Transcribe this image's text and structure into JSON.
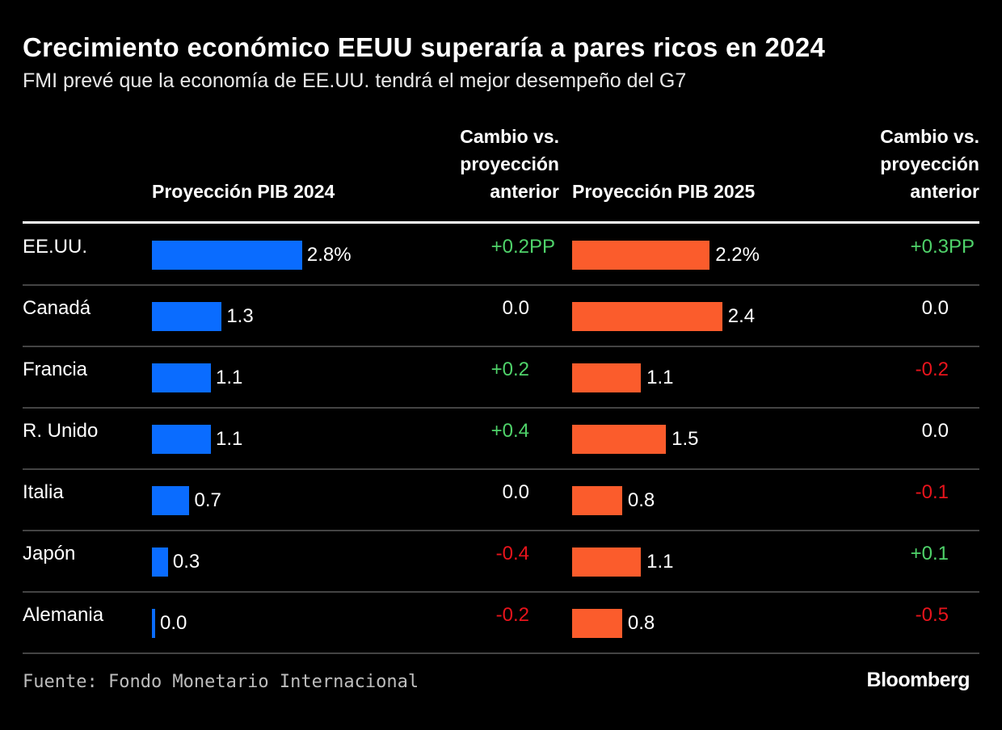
{
  "title": "Crecimiento económico EEUU superaría a pares ricos en 2024",
  "subtitle": "FMI prevé que la economía de EE.UU. tendrá el mejor desempeño del G7",
  "source": "Fuente: Fondo Monetario Internacional",
  "logo": "Bloomberg",
  "colors": {
    "bar_2024": "#0a6cff",
    "bar_2025": "#fb5c2c",
    "positive": "#4fd36a",
    "negative": "#e8141c",
    "neutral": "#ffffff"
  },
  "chart_data": {
    "type": "table",
    "headers": {
      "country": "",
      "gdp_2024": "Proyección PIB 2024",
      "change_2024": [
        "Cambio vs.",
        "proyección",
        "anterior"
      ],
      "gdp_2025": "Proyección PIB 2025",
      "change_2025": [
        "Cambio vs.",
        "proyección",
        "anterior"
      ]
    },
    "value_unit": "%",
    "change_unit": "PP",
    "rows": [
      {
        "country": "EE.UU.",
        "gdp_2024": "2.8",
        "change_2024": "+0.2",
        "gdp_2025": "2.2",
        "change_2025": "+0.3"
      },
      {
        "country": "Canadá",
        "gdp_2024": "1.3",
        "change_2024": "0.0",
        "gdp_2025": "2.4",
        "change_2025": "0.0"
      },
      {
        "country": "Francia",
        "gdp_2024": "1.1",
        "change_2024": "+0.2",
        "gdp_2025": "1.1",
        "change_2025": "-0.2"
      },
      {
        "country": "R. Unido",
        "gdp_2024": "1.1",
        "change_2024": "+0.4",
        "gdp_2025": "1.5",
        "change_2025": "0.0"
      },
      {
        "country": "Italia",
        "gdp_2024": "0.7",
        "change_2024": "0.0",
        "gdp_2025": "0.8",
        "change_2025": "-0.1"
      },
      {
        "country": "Japón",
        "gdp_2024": "0.3",
        "change_2024": "-0.4",
        "gdp_2025": "1.1",
        "change_2025": "+0.1"
      },
      {
        "country": "Alemania",
        "gdp_2024": "0.0",
        "change_2024": "-0.2",
        "gdp_2025": "0.8",
        "change_2025": "-0.5"
      }
    ]
  }
}
